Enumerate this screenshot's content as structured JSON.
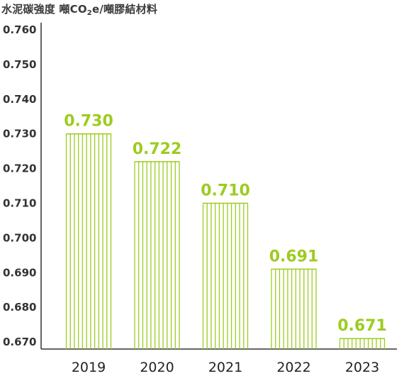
{
  "title_prefix": "水泥碳強度 噸CO",
  "title_sub": "2",
  "title_suffix": "e/噸膠結材料",
  "colors": {
    "bar": "#9ccc1f",
    "label": "#9ccc1f",
    "axis": "#333333"
  },
  "chart_data": {
    "type": "bar",
    "title": "水泥碳強度 噸CO₂e/噸膠結材料",
    "categories": [
      "2019",
      "2020",
      "2021",
      "2022",
      "2023"
    ],
    "values": [
      0.73,
      0.722,
      0.71,
      0.691,
      0.671
    ],
    "value_labels": [
      "0.730",
      "0.722",
      "0.710",
      "0.691",
      "0.671"
    ],
    "y_ticks": [
      "0.760",
      "0.750",
      "0.740",
      "0.730",
      "0.720",
      "0.710",
      "0.700",
      "0.690",
      "0.680",
      "0.670"
    ],
    "ylim": [
      0.665,
      0.762
    ],
    "grid": false,
    "bar_style": "vertical-stripes"
  }
}
